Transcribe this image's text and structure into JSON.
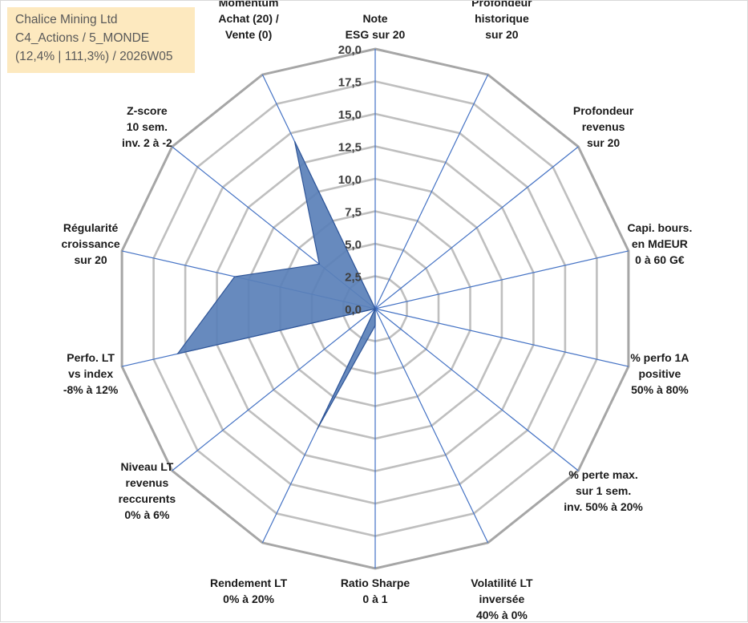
{
  "title": {
    "line1": "Chalice Mining Ltd",
    "line2": "C4_Actions / 5_MONDE",
    "line3": "(12,4% | 111,3%) / 2026W05"
  },
  "chart_data": {
    "type": "radar",
    "rmin": 0,
    "rmax": 20,
    "tick_step": 2.5,
    "tick_labels": [
      "0,0",
      "2,5",
      "5,0",
      "7,5",
      "10,0",
      "12,5",
      "15,0",
      "17,5",
      "20,0"
    ],
    "grid": true,
    "legend": "none",
    "categories": [
      [
        "Note",
        "ESG sur 20"
      ],
      [
        "Profondeur",
        "historique",
        "sur 20"
      ],
      [
        "Profondeur",
        "revenus",
        "sur 20"
      ],
      [
        "Capi. bours.",
        "en MdEUR",
        "0 à 60 G€"
      ],
      [
        "% perfo 1A",
        "positive",
        "50% à 80%"
      ],
      [
        "% perte max.",
        "sur 1 sem.",
        "inv. 50% à 20%"
      ],
      [
        "Volatilité LT",
        "inversée",
        "40% à 0%"
      ],
      [
        "Ratio Sharpe",
        "0 à 1"
      ],
      [
        "Rendement LT",
        "0% à 20%"
      ],
      [
        "Niveau LT",
        "revenus",
        "reccurents",
        "0% à 6%"
      ],
      [
        "Perfo. LT",
        "vs index",
        "-8% à 12%"
      ],
      [
        "Régularité",
        "croissance",
        "sur 20"
      ],
      [
        "Z-score",
        "10 sem.",
        "inv. 2 à -2"
      ],
      [
        "Momentum",
        "Achat (20) /",
        "Vente (0)"
      ]
    ],
    "series": [
      {
        "values": [
          0,
          0,
          0,
          0,
          0,
          0,
          0,
          1.3,
          10.3,
          0,
          15.6,
          11.1,
          5.5,
          14.3
        ]
      }
    ],
    "colors": {
      "fill": "#5a80b8",
      "stroke": "#2f5597",
      "spoke": "#4472c4",
      "grid": "#bfbfbf",
      "outer_ring": "#a6a6a6",
      "title_bg": "#fde9bf"
    }
  }
}
